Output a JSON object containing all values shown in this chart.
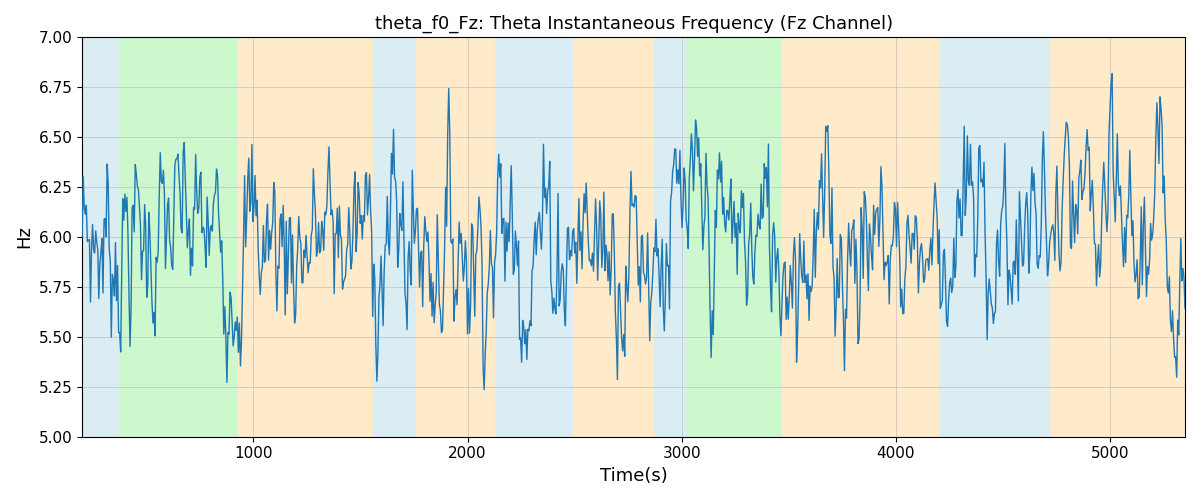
{
  "title": "theta_f0_Fz: Theta Instantaneous Frequency (Fz Channel)",
  "xlabel": "Time(s)",
  "ylabel": "Hz",
  "ylim": [
    5.0,
    7.0
  ],
  "xlim": [
    200,
    5350
  ],
  "yticks": [
    5.0,
    5.25,
    5.5,
    5.75,
    6.0,
    6.25,
    6.5,
    6.75,
    7.0
  ],
  "xticks": [
    1000,
    2000,
    3000,
    4000,
    5000
  ],
  "line_color": "#1f77b4",
  "line_width": 1.0,
  "background_color": "#ffffff",
  "regions": [
    {
      "start": 200,
      "end": 370,
      "color": "#add8e6",
      "alpha": 0.45
    },
    {
      "start": 370,
      "end": 930,
      "color": "#90ee90",
      "alpha": 0.45
    },
    {
      "start": 930,
      "end": 1560,
      "color": "#ffd9a0",
      "alpha": 0.55
    },
    {
      "start": 1560,
      "end": 1760,
      "color": "#add8e6",
      "alpha": 0.45
    },
    {
      "start": 1760,
      "end": 2130,
      "color": "#ffd9a0",
      "alpha": 0.55
    },
    {
      "start": 2130,
      "end": 2490,
      "color": "#add8e6",
      "alpha": 0.45
    },
    {
      "start": 2490,
      "end": 2870,
      "color": "#ffd9a0",
      "alpha": 0.55
    },
    {
      "start": 2870,
      "end": 3020,
      "color": "#add8e6",
      "alpha": 0.45
    },
    {
      "start": 3020,
      "end": 3470,
      "color": "#90ee90",
      "alpha": 0.45
    },
    {
      "start": 3470,
      "end": 4200,
      "color": "#ffd9a0",
      "alpha": 0.55
    },
    {
      "start": 4200,
      "end": 4720,
      "color": "#add8e6",
      "alpha": 0.45
    },
    {
      "start": 4720,
      "end": 5350,
      "color": "#ffd9a0",
      "alpha": 0.55
    }
  ],
  "n_points": 1060,
  "x_start": 200,
  "x_end": 5350,
  "base_freq": 6.0,
  "noise_scale": 0.18,
  "mean_rev": 0.25,
  "seed": 7,
  "figwidth": 12.0,
  "figheight": 5.0,
  "dpi": 100
}
